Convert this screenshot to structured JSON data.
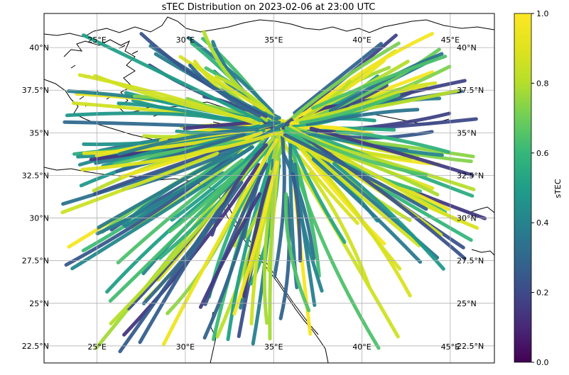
{
  "title": "sTEC Distribution on 2023-02-06 at 23:00 UTC",
  "map": {
    "lon_range": [
      22,
      47.5
    ],
    "lat_range": [
      21.5,
      42
    ],
    "gridlines": true,
    "lon_ticks": [
      25,
      30,
      35,
      40,
      45
    ],
    "lat_ticks": [
      22.5,
      25,
      27.5,
      30,
      32.5,
      35,
      37.5,
      40
    ],
    "lon_labels": [
      "25°E",
      "30°E",
      "35°E",
      "40°E",
      "45°E"
    ],
    "lat_labels": [
      "22.5°N",
      "25°N",
      "27.5°N",
      "30°N",
      "32.5°N",
      "35°N",
      "37.5°N",
      "40°N"
    ],
    "lon_labels_top": [
      "25°E",
      "30°E",
      "35°E",
      "40°E",
      "45°E"
    ],
    "center": [
      35.5,
      35.3
    ]
  },
  "colorbar": {
    "label": "sTEC",
    "colormap": "viridis",
    "range": [
      0.0,
      1.0
    ],
    "ticks": [
      0.0,
      0.2,
      0.4,
      0.6,
      0.8,
      1.0
    ],
    "tick_labels": [
      "0.0",
      "0.2",
      "0.4",
      "0.6",
      "0.8",
      "1.0"
    ],
    "placement": "right"
  }
}
